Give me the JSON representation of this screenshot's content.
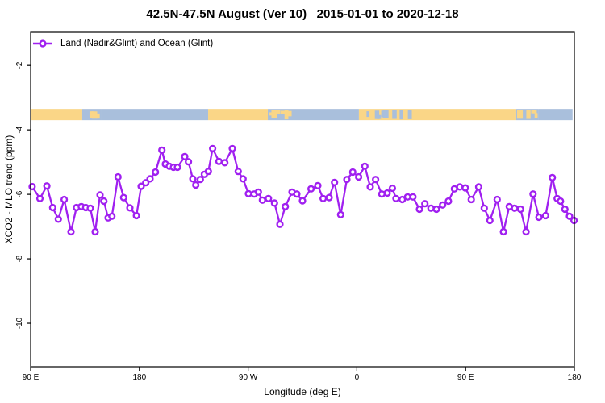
{
  "title": "42.5N-47.5N August (Ver 10)   2015-01-01 to 2020-12-18",
  "legend": {
    "label": "Land (Nadir&Glint) and Ocean (Glint)"
  },
  "colors": {
    "series": "#A020F0",
    "land": "#FAD687",
    "ocean": "#A9BFDC",
    "axis": "#000000"
  },
  "chart_data": {
    "type": "line",
    "title": "42.5N-47.5N August (Ver 10)   2015-01-01 to 2020-12-18",
    "xlabel": "Longitude (deg E)",
    "ylabel": "XCO2 - MLO trend (ppm)",
    "legend_position": "top-left",
    "grid": false,
    "x_axis": {
      "range": [
        90,
        540
      ],
      "tick_values": [
        90,
        180,
        270,
        360,
        450,
        540
      ],
      "tick_labels": [
        "90 E",
        "180",
        "90 W",
        "0",
        "90 E",
        "180"
      ],
      "note": "longitude wraps eastward: 90E -> 180 -> 90W -> 0 -> 90E -> 180"
    },
    "y_axis": {
      "range": [
        -11.35,
        -0.97
      ],
      "tick_values": [
        -2,
        -4,
        -6,
        -8,
        -10
      ],
      "tick_labels": [
        "-2",
        "-4",
        "-6",
        "-8",
        "-10"
      ]
    },
    "surface_band": {
      "description": "land/ocean strip drawn across plot",
      "y_top_ppm": -3.35,
      "y_bottom_ppm": -3.7,
      "segments": [
        {
          "from": 90.0,
          "to": 132.7,
          "type": "land"
        },
        {
          "from": 132.7,
          "to": 148.1,
          "type": "mixed_ocean"
        },
        {
          "from": 148.1,
          "to": 236.9,
          "type": "ocean"
        },
        {
          "from": 236.9,
          "to": 286.3,
          "type": "land"
        },
        {
          "from": 286.3,
          "to": 308.3,
          "type": "mixed_ocean"
        },
        {
          "from": 308.3,
          "to": 361.7,
          "type": "ocean"
        },
        {
          "from": 361.7,
          "to": 408.4,
          "type": "mixed_land"
        },
        {
          "from": 408.4,
          "to": 491.9,
          "type": "land"
        },
        {
          "from": 491.9,
          "to": 510.0,
          "type": "mixed_ocean"
        },
        {
          "from": 510.0,
          "to": 538.5,
          "type": "ocean"
        }
      ]
    },
    "series": [
      {
        "name": "Land (Nadir&Glint) and Ocean (Glint)",
        "marker": "open-circle",
        "x": [
          91.3,
          97.7,
          103.4,
          108.2,
          112.9,
          117.8,
          123.4,
          127.9,
          131.9,
          135.6,
          139.4,
          143.4,
          147.4,
          150.6,
          154.1,
          157.2,
          162.3,
          167.0,
          172.1,
          177.5,
          181.5,
          185.3,
          188.8,
          193.3,
          198.6,
          201.5,
          204.8,
          208.2,
          211.5,
          217.5,
          220.6,
          224.2,
          226.7,
          230.4,
          233.8,
          237.1,
          240.6,
          245.8,
          250.7,
          256.9,
          261.8,
          265.8,
          270.3,
          275.1,
          278.5,
          281.8,
          286.8,
          291.8,
          296.3,
          300.8,
          306.3,
          310.3,
          315.0,
          322.1,
          327.7,
          332.1,
          337.0,
          341.5,
          346.6,
          351.7,
          356.6,
          361.5,
          366.6,
          371.1,
          375.5,
          380.6,
          385.1,
          389.4,
          392.4,
          397.6,
          402.0,
          406.4,
          411.8,
          416.3,
          421.3,
          425.8,
          431.0,
          435.8,
          440.7,
          445.2,
          449.7,
          454.7,
          460.8,
          465.4,
          470.1,
          476.1,
          481.3,
          486.1,
          490.6,
          495.5,
          500.0,
          505.8,
          510.7,
          516.2,
          521.8,
          525.8,
          528.5,
          532.2,
          536.0,
          539.7
        ],
        "y": [
          -5.76,
          -6.13,
          -5.74,
          -6.41,
          -6.77,
          -6.16,
          -7.16,
          -6.41,
          -6.38,
          -6.41,
          -6.43,
          -7.16,
          -6.02,
          -6.21,
          -6.73,
          -6.68,
          -5.46,
          -6.1,
          -6.42,
          -6.66,
          -5.75,
          -5.64,
          -5.52,
          -5.31,
          -4.63,
          -5.06,
          -5.13,
          -5.16,
          -5.16,
          -4.83,
          -4.99,
          -5.52,
          -5.71,
          -5.54,
          -5.38,
          -5.29,
          -4.58,
          -4.98,
          -5.02,
          -4.58,
          -5.29,
          -5.52,
          -5.98,
          -5.99,
          -5.93,
          -6.18,
          -6.13,
          -6.27,
          -6.93,
          -6.38,
          -5.93,
          -5.99,
          -6.2,
          -5.83,
          -5.73,
          -6.13,
          -6.1,
          -5.63,
          -6.63,
          -5.54,
          -5.31,
          -5.46,
          -5.13,
          -5.77,
          -5.54,
          -5.99,
          -5.96,
          -5.81,
          -6.13,
          -6.16,
          -6.08,
          -6.08,
          -6.46,
          -6.29,
          -6.43,
          -6.46,
          -6.33,
          -6.21,
          -5.83,
          -5.77,
          -5.8,
          -6.16,
          -5.77,
          -6.43,
          -6.81,
          -6.16,
          -7.16,
          -6.38,
          -6.43,
          -6.46,
          -7.16,
          -5.99,
          -6.71,
          -6.66,
          -5.48,
          -6.13,
          -6.21,
          -6.46,
          -6.68,
          -6.81
        ]
      }
    ]
  }
}
